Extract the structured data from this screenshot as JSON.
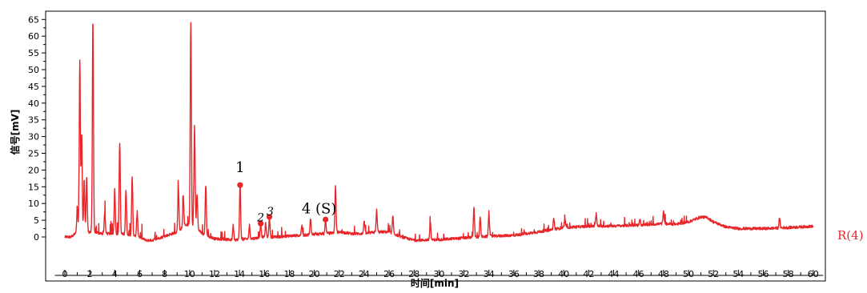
{
  "chart_data": {
    "type": "line",
    "title": "",
    "xlabel": "时间[min]",
    "ylabel": "信号[mV]",
    "xlim": [
      -1,
      61
    ],
    "ylim": [
      -4,
      66
    ],
    "x_ticks": [
      0,
      2,
      4,
      6,
      8,
      10,
      12,
      14,
      16,
      18,
      20,
      22,
      24,
      26,
      28,
      30,
      32,
      34,
      36,
      38,
      40,
      42,
      44,
      46,
      48,
      50,
      52,
      54,
      56,
      58,
      60
    ],
    "y_ticks": [
      0,
      5,
      10,
      15,
      20,
      25,
      30,
      35,
      40,
      45,
      50,
      55,
      60,
      65
    ],
    "grid": false,
    "color": "#e8262a",
    "series": [
      {
        "name": "R(4)",
        "baseline": [
          [
            0,
            0
          ],
          [
            0.5,
            0
          ],
          [
            1,
            1.5
          ],
          [
            2,
            1.5
          ],
          [
            3,
            1
          ],
          [
            4,
            1
          ],
          [
            5,
            0.8
          ],
          [
            6,
            0
          ],
          [
            6.5,
            -1
          ],
          [
            7,
            -1
          ],
          [
            8,
            0.2
          ],
          [
            9,
            1.5
          ],
          [
            9.5,
            3
          ],
          [
            10,
            4
          ],
          [
            10.5,
            3
          ],
          [
            11,
            1
          ],
          [
            12,
            -0.5
          ],
          [
            13,
            -0.8
          ],
          [
            14,
            -0.8
          ],
          [
            15,
            -0.5
          ],
          [
            16,
            0
          ],
          [
            17,
            0
          ],
          [
            18,
            0.3
          ],
          [
            19,
            0.5
          ],
          [
            20,
            0.8
          ],
          [
            21,
            1
          ],
          [
            22,
            1.5
          ],
          [
            23,
            1
          ],
          [
            24,
            1
          ],
          [
            25,
            1.5
          ],
          [
            26,
            1.5
          ],
          [
            27,
            0
          ],
          [
            28,
            -1
          ],
          [
            30,
            -0.8
          ],
          [
            32,
            -0.3
          ],
          [
            34,
            0.2
          ],
          [
            36,
            0.5
          ],
          [
            38,
            1.5
          ],
          [
            40,
            2.8
          ],
          [
            42,
            3.2
          ],
          [
            44,
            3.3
          ],
          [
            46,
            3.5
          ],
          [
            48,
            4
          ],
          [
            49,
            3.8
          ],
          [
            50,
            4.5
          ],
          [
            51,
            6
          ],
          [
            51.5,
            5.8
          ],
          [
            52,
            4.5
          ],
          [
            53,
            3
          ],
          [
            54,
            2.5
          ],
          [
            56,
            2.5
          ],
          [
            58,
            2.8
          ],
          [
            60,
            3.2
          ]
        ],
        "peaks": [
          {
            "t": 1.0,
            "h": 9
          },
          {
            "t": 1.2,
            "h": 53
          },
          {
            "t": 1.35,
            "h": 31
          },
          {
            "t": 1.55,
            "h": 17
          },
          {
            "t": 1.75,
            "h": 18
          },
          {
            "t": 2.25,
            "h": 65
          },
          {
            "t": 3.2,
            "h": 7.5
          },
          {
            "t": 4.0,
            "h": 14.5
          },
          {
            "t": 4.4,
            "h": 28
          },
          {
            "t": 4.9,
            "h": 14
          },
          {
            "t": 5.4,
            "h": 18
          },
          {
            "t": 5.8,
            "h": 7.5
          },
          {
            "t": 9.1,
            "h": 15
          },
          {
            "t": 9.5,
            "h": 12
          },
          {
            "t": 10.1,
            "h": 64
          },
          {
            "t": 10.4,
            "h": 33
          },
          {
            "t": 10.6,
            "h": 13
          },
          {
            "t": 11.3,
            "h": 15.5
          },
          {
            "t": 13.5,
            "h": 3.5
          },
          {
            "t": 14.05,
            "h": 15.5
          },
          {
            "t": 14.8,
            "h": 3.5
          },
          {
            "t": 15.7,
            "h": 4
          },
          {
            "t": 16.1,
            "h": 4
          },
          {
            "t": 16.4,
            "h": 6
          },
          {
            "t": 19.0,
            "h": 3.5
          },
          {
            "t": 19.7,
            "h": 5.5
          },
          {
            "t": 20.9,
            "h": 5.2
          },
          {
            "t": 21.7,
            "h": 15.5
          },
          {
            "t": 24.0,
            "h": 5
          },
          {
            "t": 25.0,
            "h": 8
          },
          {
            "t": 26.3,
            "h": 6
          },
          {
            "t": 29.3,
            "h": 4.5
          },
          {
            "t": 32.8,
            "h": 9
          },
          {
            "t": 33.3,
            "h": 6
          },
          {
            "t": 34.0,
            "h": 7
          },
          {
            "t": 39.2,
            "h": 5.5
          },
          {
            "t": 40.1,
            "h": 5
          },
          {
            "t": 42.6,
            "h": 7
          },
          {
            "t": 46.1,
            "h": 5.5
          },
          {
            "t": 48.0,
            "h": 7.5
          },
          {
            "t": 57.3,
            "h": 5.5
          }
        ]
      }
    ],
    "annotations": [
      {
        "text": "1",
        "x": 14.05,
        "y": 15.5
      },
      {
        "text": "2",
        "x": 15.7,
        "y": 4
      },
      {
        "text": "3",
        "x": 16.4,
        "y": 6
      },
      {
        "text": "4 (S)",
        "x": 20.9,
        "y": 5.2
      }
    ]
  }
}
